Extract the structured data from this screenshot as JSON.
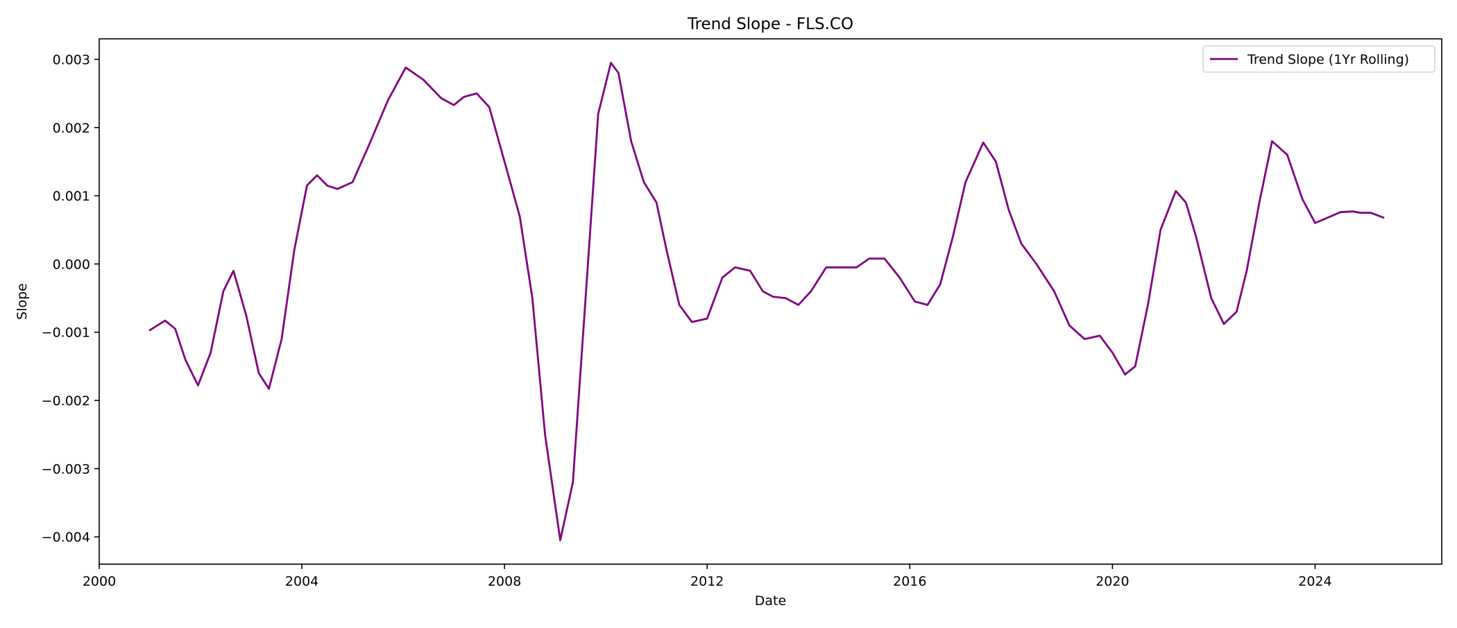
{
  "chart_data": {
    "type": "line",
    "title": "Trend Slope - FLS.CO",
    "xlabel": "Date",
    "ylabel": "Slope",
    "x_unit": "year",
    "xlim": [
      2000.0,
      2026.5
    ],
    "ylim": [
      -0.0044,
      0.0033
    ],
    "x_ticks": [
      2000,
      2004,
      2008,
      2012,
      2016,
      2020,
      2024
    ],
    "x_tick_labels": [
      "2000",
      "2004",
      "2008",
      "2012",
      "2016",
      "2020",
      "2024"
    ],
    "y_ticks": [
      -0.004,
      -0.003,
      -0.002,
      -0.001,
      0.0,
      0.001,
      0.002,
      0.003
    ],
    "y_tick_labels": [
      "−0.004",
      "−0.003",
      "−0.002",
      "−0.001",
      "0.000",
      "0.001",
      "0.002",
      "0.003"
    ],
    "grid": false,
    "legend": {
      "position": "top-right"
    },
    "series": [
      {
        "name": "Trend Slope (1Yr Rolling)",
        "color": "#800080",
        "x": [
          2001.0,
          2001.3,
          2001.5,
          2001.7,
          2001.95,
          2002.2,
          2002.45,
          2002.65,
          2002.9,
          2003.15,
          2003.35,
          2003.6,
          2003.85,
          2004.1,
          2004.3,
          2004.5,
          2004.7,
          2005.0,
          2005.3,
          2005.7,
          2006.05,
          2006.4,
          2006.75,
          2007.0,
          2007.2,
          2007.45,
          2007.7,
          2008.0,
          2008.3,
          2008.55,
          2008.8,
          2009.1,
          2009.35,
          2009.6,
          2009.85,
          2010.1,
          2010.25,
          2010.5,
          2010.75,
          2011.0,
          2011.2,
          2011.45,
          2011.7,
          2012.0,
          2012.3,
          2012.55,
          2012.85,
          2013.1,
          2013.3,
          2013.55,
          2013.8,
          2014.05,
          2014.35,
          2014.7,
          2014.95,
          2015.2,
          2015.5,
          2015.8,
          2016.1,
          2016.35,
          2016.6,
          2016.85,
          2017.1,
          2017.45,
          2017.7,
          2017.95,
          2018.2,
          2018.5,
          2018.85,
          2019.15,
          2019.45,
          2019.75,
          2020.0,
          2020.25,
          2020.45,
          2020.7,
          2020.95,
          2021.25,
          2021.45,
          2021.65,
          2021.95,
          2022.2,
          2022.45,
          2022.65,
          2022.9,
          2023.15,
          2023.45,
          2023.75,
          2024.0,
          2024.25,
          2024.5,
          2024.75,
          2024.9,
          2025.1,
          2025.35
        ],
        "y": [
          -0.00097,
          -0.00083,
          -0.00095,
          -0.0014,
          -0.00178,
          -0.0013,
          -0.0004,
          -0.0001,
          -0.00075,
          -0.0016,
          -0.00183,
          -0.0011,
          0.0002,
          0.00115,
          0.0013,
          0.00115,
          0.0011,
          0.0012,
          0.0017,
          0.0024,
          0.00288,
          0.0027,
          0.00243,
          0.00233,
          0.00245,
          0.0025,
          0.0023,
          0.0015,
          0.0007,
          -0.0005,
          -0.0025,
          -0.00405,
          -0.0032,
          -0.0005,
          0.0022,
          0.00295,
          0.0028,
          0.0018,
          0.0012,
          0.0009,
          0.0002,
          -0.0006,
          -0.00085,
          -0.0008,
          -0.0002,
          -5e-05,
          -0.0001,
          -0.0004,
          -0.00048,
          -0.0005,
          -0.0006,
          -0.0004,
          -5e-05,
          -5e-05,
          -5e-05,
          8e-05,
          8e-05,
          -0.0002,
          -0.00055,
          -0.0006,
          -0.0003,
          0.0004,
          0.0012,
          0.00178,
          0.0015,
          0.0008,
          0.0003,
          0.0,
          -0.0004,
          -0.0009,
          -0.0011,
          -0.00105,
          -0.0013,
          -0.00162,
          -0.0015,
          -0.0006,
          0.0005,
          0.00107,
          0.0009,
          0.0004,
          -0.0005,
          -0.00088,
          -0.0007,
          -0.0001,
          0.0009,
          0.0018,
          0.0016,
          0.00095,
          0.0006,
          0.00068,
          0.00076,
          0.00077,
          0.00075,
          0.00075,
          0.00068
        ]
      }
    ]
  }
}
